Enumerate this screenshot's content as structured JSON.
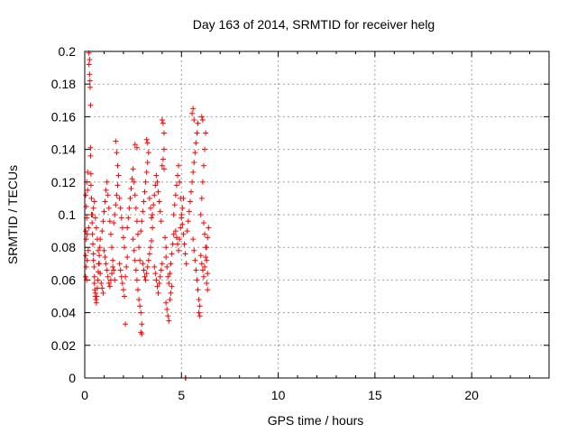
{
  "chart_data": {
    "type": "scatter",
    "title": "Day 163 of 2014, SRMTID for receiver helg",
    "xlabel": "GPS time / hours",
    "ylabel": "SRMTID / TECUs",
    "xlim": [
      0,
      24
    ],
    "ylim": [
      0,
      0.2
    ],
    "xticks": [
      0,
      5,
      10,
      15,
      20
    ],
    "yticks": [
      0,
      0.02,
      0.04,
      0.06,
      0.08,
      0.1,
      0.12,
      0.14,
      0.16,
      0.18,
      0.2
    ],
    "xtick_labels": [
      "0",
      "5",
      "10",
      "15",
      "20"
    ],
    "ytick_labels": [
      "0",
      "0.02",
      "0.04",
      "0.06",
      "0.08",
      "0.1",
      "0.12",
      "0.14",
      "0.16",
      "0.18",
      "0.2"
    ],
    "grid": true,
    "marker": "+",
    "color": "#ff0000",
    "series": [
      {
        "points": [
          [
            0.05,
            0.062
          ],
          [
            0.05,
            0.075
          ],
          [
            0.05,
            0.09
          ],
          [
            0.05,
            0.112
          ],
          [
            0.08,
            0.068
          ],
          [
            0.08,
            0.085
          ],
          [
            0.08,
            0.105
          ],
          [
            0.1,
            0.06
          ],
          [
            0.1,
            0.098
          ],
          [
            0.1,
            0.12
          ],
          [
            0.12,
            0.072
          ],
          [
            0.12,
            0.088
          ],
          [
            0.15,
            0.115
          ],
          [
            0.15,
            0.126
          ],
          [
            0.18,
            0.078
          ],
          [
            0.2,
            0.092
          ],
          [
            0.22,
            0.199
          ],
          [
            0.22,
            0.192
          ],
          [
            0.25,
            0.195
          ],
          [
            0.25,
            0.186
          ],
          [
            0.27,
            0.182
          ],
          [
            0.28,
            0.178
          ],
          [
            0.3,
            0.167
          ],
          [
            0.3,
            0.141
          ],
          [
            0.3,
            0.136
          ],
          [
            0.32,
            0.125
          ],
          [
            0.32,
            0.118
          ],
          [
            0.35,
            0.11
          ],
          [
            0.35,
            0.1
          ],
          [
            0.38,
            0.095
          ],
          [
            0.4,
            0.088
          ],
          [
            0.42,
            0.082
          ],
          [
            0.45,
            0.076
          ],
          [
            0.45,
            0.072
          ],
          [
            0.48,
            0.068
          ],
          [
            0.5,
            0.062
          ],
          [
            0.5,
            0.058
          ],
          [
            0.52,
            0.054
          ],
          [
            0.55,
            0.052
          ],
          [
            0.55,
            0.05
          ],
          [
            0.58,
            0.048
          ],
          [
            0.6,
            0.046
          ],
          [
            0.62,
            0.05
          ],
          [
            0.65,
            0.055
          ],
          [
            0.68,
            0.06
          ],
          [
            0.7,
            0.065
          ],
          [
            0.72,
            0.07
          ],
          [
            0.75,
            0.075
          ],
          [
            0.78,
            0.08
          ],
          [
            0.8,
            0.085
          ],
          [
            0.4,
            0.1
          ],
          [
            0.45,
            0.104
          ],
          [
            0.5,
            0.108
          ],
          [
            0.55,
            0.098
          ],
          [
            0.6,
            0.092
          ],
          [
            0.65,
            0.085
          ],
          [
            0.7,
            0.078
          ],
          [
            0.75,
            0.07
          ],
          [
            0.8,
            0.064
          ],
          [
            0.85,
            0.058
          ],
          [
            0.9,
            0.055
          ],
          [
            0.95,
            0.052
          ],
          [
            0.9,
            0.09
          ],
          [
            0.95,
            0.096
          ],
          [
            1.0,
            0.102
          ],
          [
            1.05,
            0.108
          ],
          [
            1.1,
            0.115
          ],
          [
            1.15,
            0.12
          ],
          [
            1.2,
            0.112
          ],
          [
            1.25,
            0.104
          ],
          [
            1.3,
            0.096
          ],
          [
            1.35,
            0.088
          ],
          [
            1.4,
            0.08
          ],
          [
            1.45,
            0.072
          ],
          [
            1.5,
            0.066
          ],
          [
            1.55,
            0.06
          ],
          [
            1.0,
            0.078
          ],
          [
            1.05,
            0.074
          ],
          [
            1.1,
            0.07
          ],
          [
            1.15,
            0.066
          ],
          [
            1.2,
            0.062
          ],
          [
            1.25,
            0.058
          ],
          [
            1.3,
            0.056
          ],
          [
            1.35,
            0.06
          ],
          [
            1.4,
            0.064
          ],
          [
            1.45,
            0.068
          ],
          [
            1.5,
            0.095
          ],
          [
            1.55,
            0.1
          ],
          [
            1.6,
            0.106
          ],
          [
            1.65,
            0.112
          ],
          [
            1.7,
            0.118
          ],
          [
            1.75,
            0.124
          ],
          [
            1.6,
            0.145
          ],
          [
            1.65,
            0.138
          ],
          [
            1.7,
            0.13
          ],
          [
            1.8,
            0.11
          ],
          [
            1.85,
            0.104
          ],
          [
            1.9,
            0.098
          ],
          [
            1.95,
            0.092
          ],
          [
            2.0,
            0.086
          ],
          [
            2.05,
            0.08
          ],
          [
            1.8,
            0.07
          ],
          [
            1.85,
            0.066
          ],
          [
            1.9,
            0.062
          ],
          [
            1.95,
            0.058
          ],
          [
            2.0,
            0.054
          ],
          [
            2.05,
            0.05
          ],
          [
            2.1,
            0.033
          ],
          [
            2.1,
            0.062
          ],
          [
            2.15,
            0.068
          ],
          [
            2.2,
            0.074
          ],
          [
            2.2,
            0.092
          ],
          [
            2.25,
            0.098
          ],
          [
            2.3,
            0.104
          ],
          [
            2.35,
            0.11
          ],
          [
            2.4,
            0.116
          ],
          [
            2.45,
            0.122
          ],
          [
            2.5,
            0.128
          ],
          [
            2.55,
            0.12
          ],
          [
            2.6,
            0.112
          ],
          [
            2.65,
            0.104
          ],
          [
            2.7,
            0.096
          ],
          [
            2.75,
            0.088
          ],
          [
            2.8,
            0.08
          ],
          [
            2.85,
            0.072
          ],
          [
            2.6,
            0.143
          ],
          [
            2.7,
            0.141
          ],
          [
            2.5,
            0.085
          ],
          [
            2.55,
            0.078
          ],
          [
            2.6,
            0.072
          ],
          [
            2.65,
            0.066
          ],
          [
            2.7,
            0.06
          ],
          [
            2.75,
            0.054
          ],
          [
            2.8,
            0.048
          ],
          [
            2.85,
            0.044
          ],
          [
            2.9,
            0.04
          ],
          [
            2.95,
            0.033
          ],
          [
            2.9,
            0.028
          ],
          [
            2.95,
            0.027
          ],
          [
            2.9,
            0.09
          ],
          [
            2.95,
            0.096
          ],
          [
            3.0,
            0.102
          ],
          [
            3.05,
            0.108
          ],
          [
            3.1,
            0.114
          ],
          [
            3.15,
            0.12
          ],
          [
            3.2,
            0.126
          ],
          [
            3.25,
            0.132
          ],
          [
            3.3,
            0.138
          ],
          [
            3.2,
            0.146
          ],
          [
            3.25,
            0.144
          ],
          [
            3.35,
            0.11
          ],
          [
            3.4,
            0.104
          ],
          [
            3.45,
            0.098
          ],
          [
            3.5,
            0.092
          ],
          [
            3.0,
            0.07
          ],
          [
            3.05,
            0.066
          ],
          [
            3.1,
            0.062
          ],
          [
            3.15,
            0.06
          ],
          [
            3.2,
            0.064
          ],
          [
            3.25,
            0.068
          ],
          [
            3.3,
            0.072
          ],
          [
            3.35,
            0.076
          ],
          [
            3.4,
            0.08
          ],
          [
            3.45,
            0.084
          ],
          [
            3.5,
            0.1
          ],
          [
            3.55,
            0.106
          ],
          [
            3.6,
            0.112
          ],
          [
            3.65,
            0.118
          ],
          [
            3.7,
            0.124
          ],
          [
            3.75,
            0.12
          ],
          [
            3.8,
            0.114
          ],
          [
            3.85,
            0.108
          ],
          [
            3.9,
            0.102
          ],
          [
            3.95,
            0.096
          ],
          [
            4.0,
            0.13
          ],
          [
            4.05,
            0.134
          ],
          [
            4.1,
            0.128
          ],
          [
            3.6,
            0.068
          ],
          [
            3.65,
            0.064
          ],
          [
            3.7,
            0.06
          ],
          [
            3.75,
            0.056
          ],
          [
            3.8,
            0.052
          ],
          [
            3.85,
            0.058
          ],
          [
            3.9,
            0.062
          ],
          [
            3.95,
            0.066
          ],
          [
            4.0,
            0.07
          ],
          [
            4.0,
            0.158
          ],
          [
            4.05,
            0.156
          ],
          [
            4.1,
            0.15
          ],
          [
            4.1,
            0.14
          ],
          [
            4.15,
            0.086
          ],
          [
            4.2,
            0.08
          ],
          [
            4.2,
            0.074
          ],
          [
            4.25,
            0.068
          ],
          [
            4.3,
            0.062
          ],
          [
            4.35,
            0.058
          ],
          [
            4.4,
            0.064
          ],
          [
            4.45,
            0.07
          ],
          [
            4.5,
            0.076
          ],
          [
            4.55,
            0.082
          ],
          [
            4.6,
            0.088
          ],
          [
            4.2,
            0.046
          ],
          [
            4.25,
            0.042
          ],
          [
            4.3,
            0.038
          ],
          [
            4.35,
            0.035
          ],
          [
            4.4,
            0.048
          ],
          [
            4.45,
            0.052
          ],
          [
            4.5,
            0.056
          ],
          [
            4.6,
            0.1
          ],
          [
            4.65,
            0.106
          ],
          [
            4.7,
            0.112
          ],
          [
            4.75,
            0.118
          ],
          [
            4.8,
            0.124
          ],
          [
            4.85,
            0.13
          ],
          [
            4.9,
            0.12
          ],
          [
            4.95,
            0.11
          ],
          [
            5.0,
            0.1
          ],
          [
            5.05,
            0.094
          ],
          [
            5.1,
            0.088
          ],
          [
            5.15,
            0.082
          ],
          [
            5.2,
            0.076
          ],
          [
            5.25,
            0.07
          ],
          [
            4.7,
            0.09
          ],
          [
            4.75,
            0.086
          ],
          [
            4.8,
            0.082
          ],
          [
            4.85,
            0.078
          ],
          [
            4.9,
            0.085
          ],
          [
            4.95,
            0.092
          ],
          [
            5.0,
            0.098
          ],
          [
            5.05,
            0.104
          ],
          [
            5.1,
            0.11
          ],
          [
            5.2,
            0.0
          ],
          [
            5.22,
            0.0
          ],
          [
            5.3,
            0.09
          ],
          [
            5.35,
            0.096
          ],
          [
            5.4,
            0.102
          ],
          [
            5.45,
            0.108
          ],
          [
            5.5,
            0.114
          ],
          [
            5.55,
            0.12
          ],
          [
            5.6,
            0.126
          ],
          [
            5.65,
            0.132
          ],
          [
            5.7,
            0.138
          ],
          [
            5.75,
            0.144
          ],
          [
            5.8,
            0.15
          ],
          [
            5.85,
            0.156
          ],
          [
            5.55,
            0.162
          ],
          [
            5.6,
            0.165
          ],
          [
            5.65,
            0.158
          ],
          [
            5.6,
            0.085
          ],
          [
            5.65,
            0.078
          ],
          [
            5.7,
            0.072
          ],
          [
            5.75,
            0.066
          ],
          [
            5.8,
            0.06
          ],
          [
            5.85,
            0.054
          ],
          [
            5.9,
            0.048
          ],
          [
            5.95,
            0.044
          ],
          [
            5.9,
            0.04
          ],
          [
            5.95,
            0.038
          ],
          [
            6.0,
            0.1
          ],
          [
            6.05,
            0.11
          ],
          [
            6.1,
            0.12
          ],
          [
            6.15,
            0.13
          ],
          [
            6.2,
            0.14
          ],
          [
            6.25,
            0.15
          ],
          [
            6.05,
            0.16
          ],
          [
            6.1,
            0.158
          ],
          [
            6.15,
            0.095
          ],
          [
            6.2,
            0.088
          ],
          [
            6.25,
            0.08
          ],
          [
            6.3,
            0.072
          ],
          [
            6.35,
            0.064
          ],
          [
            6.3,
            0.058
          ],
          [
            6.35,
            0.054
          ],
          [
            6.0,
            0.075
          ],
          [
            6.05,
            0.07
          ],
          [
            6.1,
            0.066
          ],
          [
            6.15,
            0.062
          ],
          [
            6.2,
            0.068
          ],
          [
            6.25,
            0.074
          ],
          [
            6.3,
            0.08
          ],
          [
            6.35,
            0.086
          ],
          [
            6.4,
            0.092
          ]
        ]
      }
    ]
  }
}
